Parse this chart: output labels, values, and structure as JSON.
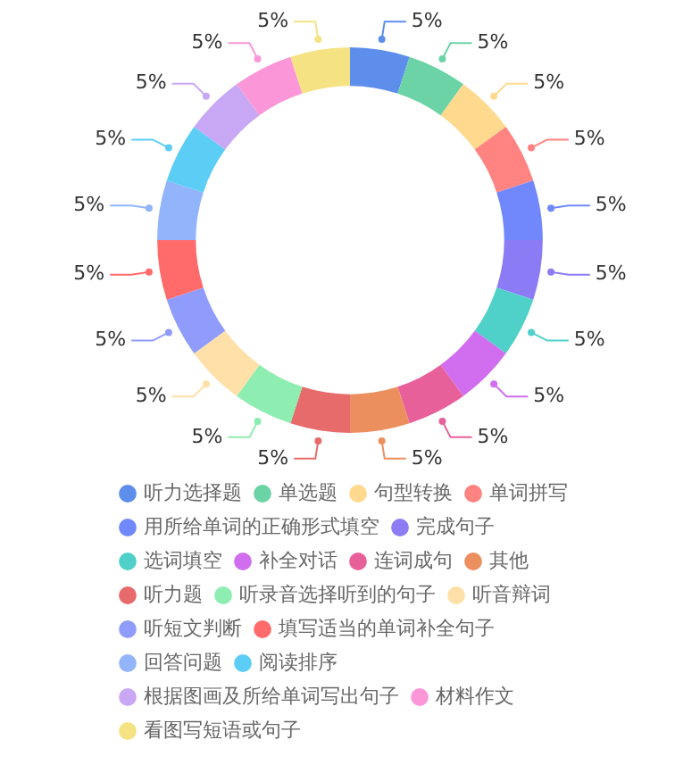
{
  "chart_data": {
    "type": "donut",
    "categories": [
      "听力选择题",
      "单选题",
      "句型转换",
      "单词拼写",
      "用所给单词的正确形式填空",
      "完成句子",
      "选词填空",
      "补全对话",
      "连词成句",
      "其他",
      "听力题",
      "听录音选择听到的句子",
      "听音辩词",
      "听短文判断",
      "填写适当的单词补全句子",
      "回答问题",
      "阅读排序",
      "根据图画及所给单词写出句子",
      "材料作文",
      "看图写短语或句子"
    ],
    "values": [
      5,
      5,
      5,
      5,
      5,
      5,
      5,
      5,
      5,
      5,
      5,
      5,
      5,
      5,
      5,
      5,
      5,
      5,
      5,
      5
    ],
    "value_labels": [
      "5%",
      "5%",
      "5%",
      "5%",
      "5%",
      "5%",
      "5%",
      "5%",
      "5%",
      "5%",
      "5%",
      "5%",
      "5%",
      "5%",
      "5%",
      "5%",
      "5%",
      "5%",
      "5%",
      "5%"
    ],
    "colors": [
      "#5d8eec",
      "#6bd3a6",
      "#ffd98e",
      "#ff8380",
      "#7088fc",
      "#8b7cf6",
      "#4fd1c9",
      "#d16ef0",
      "#e8609a",
      "#eb8f5e",
      "#e86b6b",
      "#8eedb0",
      "#ffe0a8",
      "#909cfc",
      "#ff6b6b",
      "#91b4fb",
      "#5ccdf5",
      "#c8a8f5",
      "#fb97d8",
      "#f5e283"
    ],
    "legend": "bottom"
  }
}
